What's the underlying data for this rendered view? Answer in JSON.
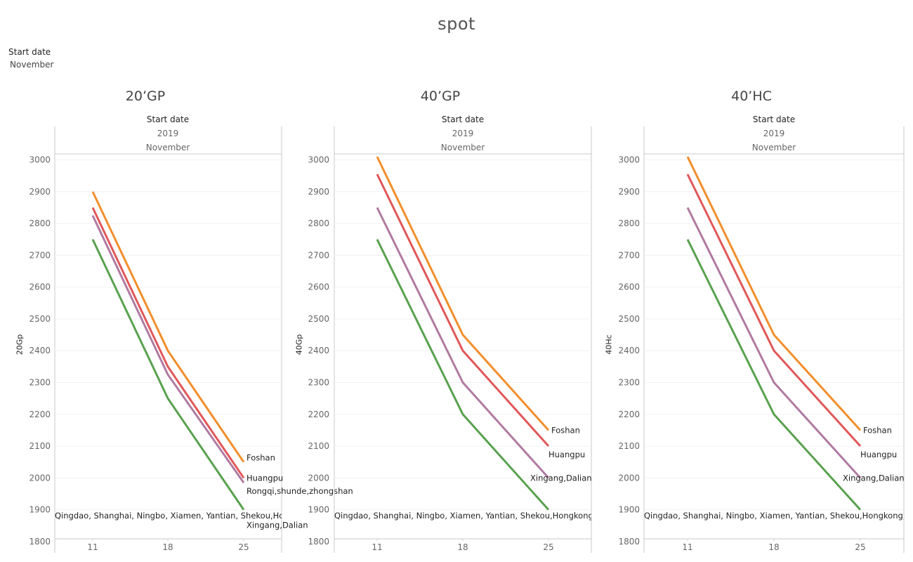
{
  "title": "spot",
  "filter": {
    "label": "Start date",
    "value": "November"
  },
  "column_header": {
    "label": "Start date",
    "year": "2019",
    "month": "November"
  },
  "colors": {
    "Foshan": "#f28e2b",
    "Huangpu": "#e15759",
    "purple": "#b07aa1",
    "green": "#59a14f"
  },
  "chart_data": [
    {
      "type": "line",
      "title": "20’GP",
      "ylabel": "20Gp",
      "x": [
        "11",
        "18",
        "25"
      ],
      "ylim": [
        1780,
        3010
      ],
      "yticks": [
        1800,
        1900,
        2000,
        2100,
        2200,
        2300,
        2400,
        2500,
        2600,
        2700,
        2800,
        2900,
        3000
      ],
      "series": [
        {
          "name": "Foshan",
          "color": "#f28e2b",
          "values": [
            2900,
            2400,
            2050
          ]
        },
        {
          "name": "Huangpu",
          "color": "#e15759",
          "values": [
            2850,
            2350,
            2000
          ]
        },
        {
          "name": "Rongqi,shunde,zhongshan",
          "color": "#b07aa1",
          "values": [
            2825,
            2325,
            1985
          ]
        },
        {
          "name": "Xingang,Dalian",
          "color": "#59a14f",
          "values": [
            2750,
            2250,
            1900
          ]
        }
      ],
      "bottom_label": "Qingdao, Shanghai, Ningbo, Xiamen, Yantian, Shekou,Hon"
    },
    {
      "type": "line",
      "title": "40’GP",
      "ylabel": "40Gp",
      "x": [
        "11",
        "18",
        "25"
      ],
      "ylim": [
        1780,
        3010
      ],
      "yticks": [
        1800,
        1900,
        2000,
        2100,
        2200,
        2300,
        2400,
        2500,
        2600,
        2700,
        2800,
        2900,
        3000
      ],
      "series": [
        {
          "name": "Foshan",
          "color": "#f28e2b",
          "values": [
            3010,
            2450,
            2150
          ]
        },
        {
          "name": "Huangpu",
          "color": "#e15759",
          "values": [
            2955,
            2400,
            2100
          ]
        },
        {
          "name": "Xingang,Dalian",
          "color": "#b07aa1",
          "values": [
            2850,
            2300,
            2000
          ]
        },
        {
          "name": "",
          "color": "#59a14f",
          "values": [
            2750,
            2200,
            1900
          ]
        }
      ],
      "bottom_label": "Qingdao, Shanghai, Ningbo, Xiamen, Yantian, Shekou,Hongkong,B"
    },
    {
      "type": "line",
      "title": "40’HC",
      "ylabel": "40Hc",
      "x": [
        "11",
        "18",
        "25"
      ],
      "ylim": [
        1780,
        3010
      ],
      "yticks": [
        1800,
        1900,
        2000,
        2100,
        2200,
        2300,
        2400,
        2500,
        2600,
        2700,
        2800,
        2900,
        3000
      ],
      "series": [
        {
          "name": "Foshan",
          "color": "#f28e2b",
          "values": [
            3010,
            2450,
            2150
          ]
        },
        {
          "name": "Huangpu",
          "color": "#e15759",
          "values": [
            2955,
            2400,
            2100
          ]
        },
        {
          "name": "Xingang,Dalian",
          "color": "#b07aa1",
          "values": [
            2850,
            2300,
            2000
          ]
        },
        {
          "name": "",
          "color": "#59a14f",
          "values": [
            2750,
            2200,
            1900
          ]
        }
      ],
      "bottom_label": "Qingdao, Shanghai, Ningbo, Xiamen, Yantian, Shekou,Hongkong,B"
    }
  ]
}
